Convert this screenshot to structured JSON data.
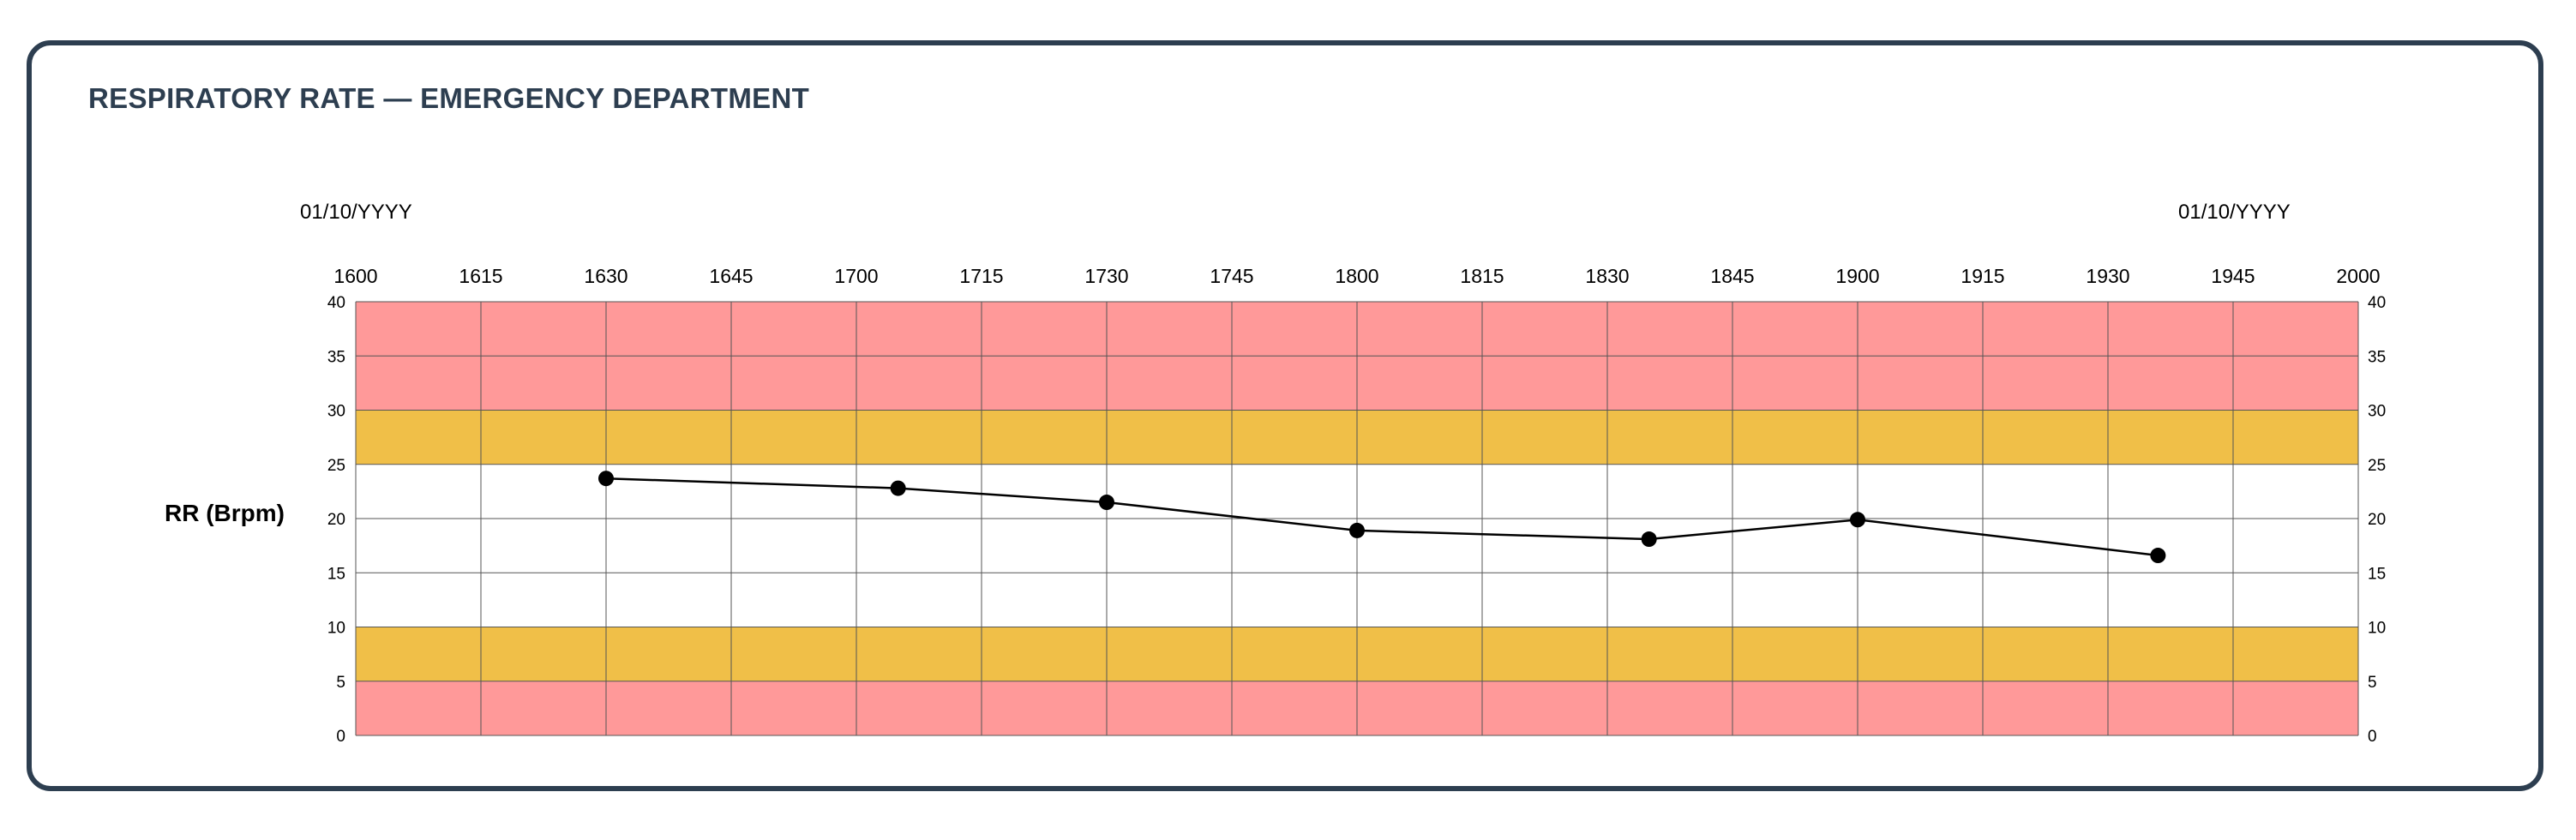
{
  "page": {
    "title": "RESPIRATORY RATE — EMERGENCY DEPARTMENT"
  },
  "chart_data": {
    "type": "line",
    "title": "RESPIRATORY RATE — EMERGENCY DEPARTMENT",
    "ylabel": "RR (Brpm)",
    "xlabel": "",
    "date_label_left": "01/10/YYYY",
    "date_label_right": "01/10/YYYY",
    "x_ticks": [
      "1600",
      "1615",
      "1630",
      "1645",
      "1700",
      "1715",
      "1730",
      "1745",
      "1800",
      "1815",
      "1830",
      "1845",
      "1900",
      "1915",
      "1930",
      "1945",
      "2000"
    ],
    "y_ticks": [
      0,
      5,
      10,
      15,
      20,
      25,
      30,
      35,
      40
    ],
    "ylim": [
      0,
      40
    ],
    "xlim": [
      "16:00",
      "20:00"
    ],
    "grid": true,
    "zones": [
      {
        "from": 0,
        "to": 5,
        "color": "#ff9999"
      },
      {
        "from": 5,
        "to": 10,
        "color": "#f0bf48"
      },
      {
        "from": 10,
        "to": 25,
        "color": "#ffffff"
      },
      {
        "from": 25,
        "to": 30,
        "color": "#f0bf48"
      },
      {
        "from": 30,
        "to": 40,
        "color": "#ff9999"
      }
    ],
    "series": [
      {
        "points": [
          {
            "x": "16:30",
            "y": 23.7
          },
          {
            "x": "17:05",
            "y": 22.8
          },
          {
            "x": "17:30",
            "y": 21.5
          },
          {
            "x": "18:00",
            "y": 18.9
          },
          {
            "x": "18:35",
            "y": 18.1
          },
          {
            "x": "19:00",
            "y": 19.9
          },
          {
            "x": "19:36",
            "y": 16.6
          }
        ]
      }
    ],
    "colors": {
      "line": "#000000",
      "marker": "#000000",
      "grid": "#555555",
      "frame": "#2d3e50"
    }
  }
}
